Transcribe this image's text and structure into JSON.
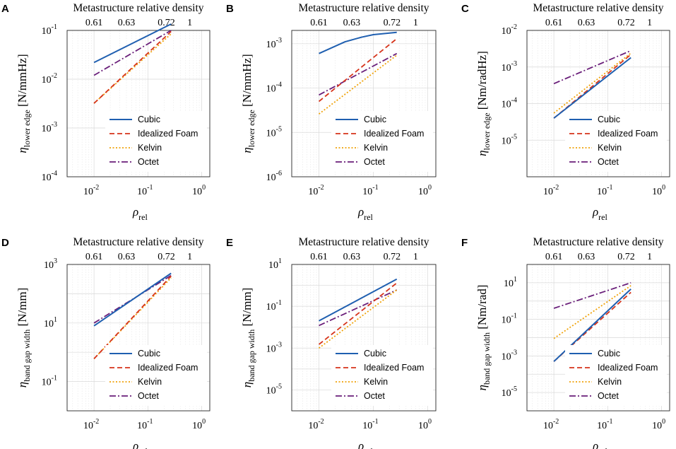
{
  "figure": {
    "top_axis_label": "Metastructure relative density",
    "top_ticks": [
      "0.61",
      "0.63",
      "0.72",
      "1"
    ],
    "x_label_main": "ρ",
    "x_label_sub": "rel",
    "x_ticks": [
      {
        "base": "10",
        "exp": "-2"
      },
      {
        "base": "10",
        "exp": "-1"
      },
      {
        "base": "10",
        "exp": "0"
      }
    ]
  },
  "legend": [
    "Cubic",
    "Idealized Foam",
    "Kelvin",
    "Octet"
  ],
  "colors": {
    "Cubic": "#1f5fb0",
    "Idealized Foam": "#d6331a",
    "Kelvin": "#f0a30a",
    "Octet": "#6a1f7a"
  },
  "chart_data": [
    {
      "panel": "A",
      "type": "line",
      "ylabel": "η",
      "ylabel_sub": "lower edge",
      "yunit": "[N/mmHz]",
      "ylim_log": [
        -4,
        -1
      ],
      "yticks": [
        {
          "base": "10",
          "exp": "-4"
        },
        {
          "base": "10",
          "exp": "-3"
        },
        {
          "base": "10",
          "exp": "-2"
        },
        {
          "base": "10",
          "exp": "-1"
        }
      ],
      "series": [
        {
          "name": "Cubic",
          "x": [
            0.01,
            0.27
          ],
          "y": [
            0.022,
            0.135
          ]
        },
        {
          "name": "Idealized Foam",
          "x": [
            0.01,
            0.27
          ],
          "y": [
            0.0032,
            0.095
          ]
        },
        {
          "name": "Kelvin",
          "x": [
            0.01,
            0.27
          ],
          "y": [
            0.0032,
            0.085
          ]
        },
        {
          "name": "Octet",
          "x": [
            0.01,
            0.27
          ],
          "y": [
            0.012,
            0.1
          ]
        }
      ]
    },
    {
      "panel": "B",
      "type": "line",
      "ylabel": "η",
      "ylabel_sub": "lower edge",
      "yunit": "[N/mmHz]",
      "ylim_log": [
        -6,
        -2.7
      ],
      "yticks": [
        {
          "base": "10",
          "exp": "-6"
        },
        {
          "base": "10",
          "exp": "-5"
        },
        {
          "base": "10",
          "exp": "-4"
        },
        {
          "base": "10",
          "exp": "-3"
        }
      ],
      "series": [
        {
          "name": "Cubic",
          "x": [
            0.01,
            0.03,
            0.06,
            0.1,
            0.27
          ],
          "y": [
            0.0006,
            0.0011,
            0.0014,
            0.0016,
            0.0018
          ]
        },
        {
          "name": "Idealized Foam",
          "x": [
            0.01,
            0.27
          ],
          "y": [
            5e-05,
            0.0013
          ]
        },
        {
          "name": "Kelvin",
          "x": [
            0.01,
            0.27
          ],
          "y": [
            2.6e-05,
            0.00055
          ]
        },
        {
          "name": "Octet",
          "x": [
            0.01,
            0.27
          ],
          "y": [
            7e-05,
            0.0006
          ]
        }
      ]
    },
    {
      "panel": "C",
      "type": "line",
      "ylabel": "η",
      "ylabel_sub": "lower edge",
      "yunit": "[Nm/radHz]",
      "ylim_log": [
        -6,
        -2
      ],
      "yticks": [
        {
          "base": "10",
          "exp": "-5"
        },
        {
          "base": "10",
          "exp": "-4"
        },
        {
          "base": "10",
          "exp": "-3"
        },
        {
          "base": "10",
          "exp": "-2"
        }
      ],
      "series": [
        {
          "name": "Cubic",
          "x": [
            0.01,
            0.27
          ],
          "y": [
            4e-05,
            0.0018
          ]
        },
        {
          "name": "Idealized Foam",
          "x": [
            0.01,
            0.27
          ],
          "y": [
            4e-05,
            0.0022
          ]
        },
        {
          "name": "Kelvin",
          "x": [
            0.01,
            0.27
          ],
          "y": [
            5.5e-05,
            0.0024
          ]
        },
        {
          "name": "Octet",
          "x": [
            0.01,
            0.27
          ],
          "y": [
            0.00035,
            0.0028
          ]
        }
      ]
    },
    {
      "panel": "D",
      "type": "line",
      "ylabel": "η",
      "ylabel_sub": "band gap width",
      "yunit": "[N/mm]",
      "ylim_log": [
        -2,
        3
      ],
      "yticks": [
        {
          "base": "10",
          "exp": "-1"
        },
        {
          "base": "10",
          "exp": "1"
        },
        {
          "base": "10",
          "exp": "3"
        }
      ],
      "series": [
        {
          "name": "Cubic",
          "x": [
            0.01,
            0.27
          ],
          "y": [
            8,
            500
          ]
        },
        {
          "name": "Idealized Foam",
          "x": [
            0.01,
            0.27
          ],
          "y": [
            0.6,
            400
          ]
        },
        {
          "name": "Kelvin",
          "x": [
            0.01,
            0.27
          ],
          "y": [
            0.6,
            350
          ]
        },
        {
          "name": "Octet",
          "x": [
            0.01,
            0.27
          ],
          "y": [
            10,
            420
          ]
        }
      ]
    },
    {
      "panel": "E",
      "type": "line",
      "ylabel": "η",
      "ylabel_sub": "band gap width",
      "yunit": "[N/mm]",
      "ylim_log": [
        -6,
        1
      ],
      "yticks": [
        {
          "base": "10",
          "exp": "-5"
        },
        {
          "base": "10",
          "exp": "-3"
        },
        {
          "base": "10",
          "exp": "-1"
        },
        {
          "base": "10",
          "exp": "1"
        }
      ],
      "series": [
        {
          "name": "Cubic",
          "x": [
            0.01,
            0.27
          ],
          "y": [
            0.02,
            2
          ]
        },
        {
          "name": "Idealized Foam",
          "x": [
            0.01,
            0.27
          ],
          "y": [
            0.0015,
            1.3
          ]
        },
        {
          "name": "Kelvin",
          "x": [
            0.01,
            0.27
          ],
          "y": [
            0.001,
            0.6
          ]
        },
        {
          "name": "Octet",
          "x": [
            0.01,
            0.27
          ],
          "y": [
            0.012,
            0.6
          ]
        }
      ]
    },
    {
      "panel": "F",
      "type": "line",
      "ylabel": "η",
      "ylabel_sub": "band gap width",
      "yunit": "[Nm/rad]",
      "ylim_log": [
        -6,
        2
      ],
      "yticks": [
        {
          "base": "10",
          "exp": "-5"
        },
        {
          "base": "10",
          "exp": "-3"
        },
        {
          "base": "10",
          "exp": "-1"
        },
        {
          "base": "10",
          "exp": "1"
        }
      ],
      "series": [
        {
          "name": "Cubic",
          "x": [
            0.01,
            0.27
          ],
          "y": [
            0.0005,
            4.5
          ]
        },
        {
          "name": "Idealized Foam",
          "x": [
            0.01,
            0.27
          ],
          "y": [
            0.0005,
            3
          ]
        },
        {
          "name": "Kelvin",
          "x": [
            0.01,
            0.27
          ],
          "y": [
            0.009,
            7
          ]
        },
        {
          "name": "Octet",
          "x": [
            0.01,
            0.27
          ],
          "y": [
            0.4,
            10
          ]
        }
      ]
    }
  ]
}
